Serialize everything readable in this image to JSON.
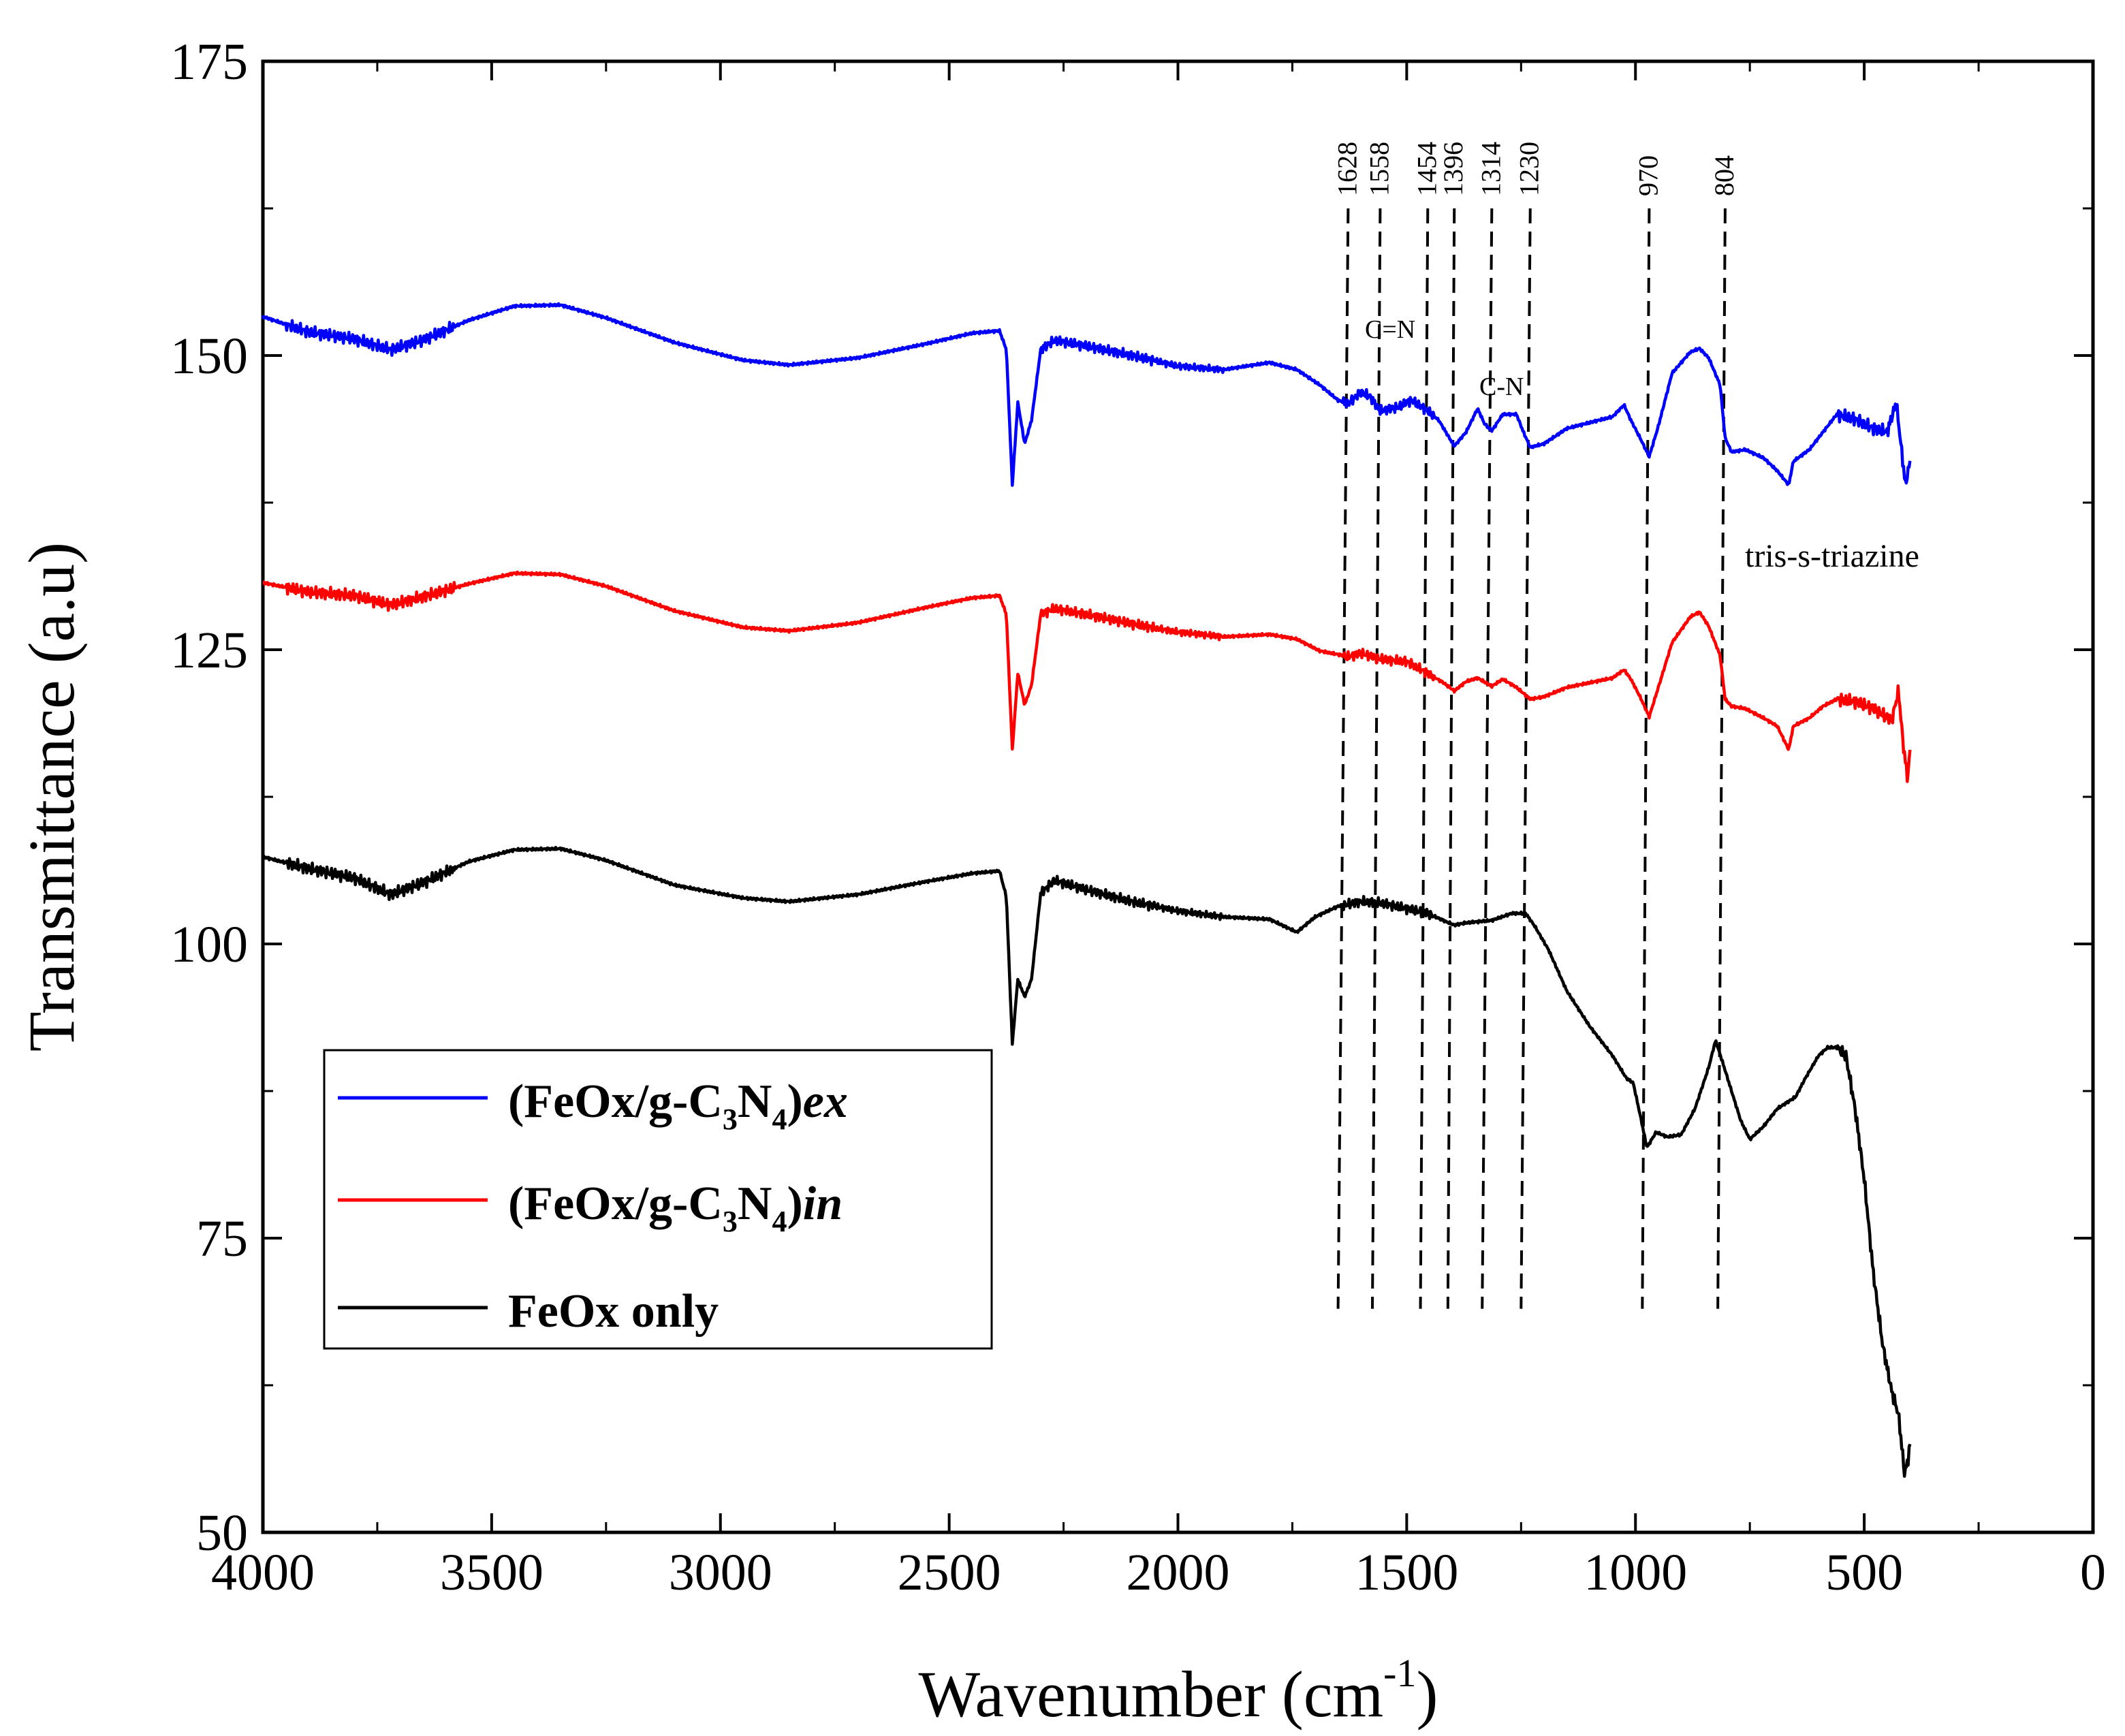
{
  "chart_data": {
    "type": "line",
    "xlabel": "Wavenumber (cm",
    "xlabel_sup": "-1",
    "xlabel_close": ")",
    "ylabel": "Transmittance (a.u)",
    "xlim": [
      4000,
      0
    ],
    "ylim": [
      50,
      175
    ],
    "x_ticks": [
      "4000",
      "3500",
      "3000",
      "2500",
      "2000",
      "1500",
      "1000",
      "500",
      "0"
    ],
    "y_ticks": [
      "50",
      "75",
      "100",
      "125",
      "150",
      "175"
    ],
    "series": [
      {
        "name": "(FeOx/g-C3N4)ex",
        "legend_parts": [
          "(FeOx/g-C",
          "3",
          "N",
          "4",
          ")",
          "ex"
        ],
        "color": "#0000ff",
        "points": [
          [
            4000,
            153.3
          ],
          [
            3900,
            152.0
          ],
          [
            3800,
            151.4
          ],
          [
            3720,
            150.5
          ],
          [
            3650,
            151.3
          ],
          [
            3550,
            153.0
          ],
          [
            3450,
            154.2
          ],
          [
            3350,
            154.3
          ],
          [
            3250,
            153.2
          ],
          [
            3100,
            151.1
          ],
          [
            2950,
            149.6
          ],
          [
            2850,
            149.2
          ],
          [
            2700,
            149.8
          ],
          [
            2550,
            151.0
          ],
          [
            2450,
            151.9
          ],
          [
            2390,
            152.1
          ],
          [
            2375,
            150.5
          ],
          [
            2362,
            139.0
          ],
          [
            2350,
            146.0
          ],
          [
            2335,
            142.5
          ],
          [
            2320,
            144.5
          ],
          [
            2300,
            150.5
          ],
          [
            2270,
            151.3
          ],
          [
            2200,
            150.8
          ],
          [
            2100,
            150.0
          ],
          [
            2000,
            149.1
          ],
          [
            1900,
            148.8
          ],
          [
            1800,
            149.4
          ],
          [
            1740,
            148.8
          ],
          [
            1690,
            147.5
          ],
          [
            1650,
            146.2
          ],
          [
            1628,
            145.9
          ],
          [
            1600,
            146.9
          ],
          [
            1580,
            146.5
          ],
          [
            1558,
            145.3
          ],
          [
            1520,
            145.6
          ],
          [
            1490,
            146.2
          ],
          [
            1454,
            145.3
          ],
          [
            1430,
            144.5
          ],
          [
            1396,
            142.3
          ],
          [
            1370,
            143.5
          ],
          [
            1345,
            145.5
          ],
          [
            1330,
            144.2
          ],
          [
            1314,
            143.6
          ],
          [
            1290,
            145.0
          ],
          [
            1260,
            145.0
          ],
          [
            1245,
            143.5
          ],
          [
            1230,
            142.2
          ],
          [
            1200,
            142.5
          ],
          [
            1150,
            143.8
          ],
          [
            1100,
            144.3
          ],
          [
            1050,
            144.8
          ],
          [
            1025,
            145.8
          ],
          [
            1010,
            144.5
          ],
          [
            990,
            143.0
          ],
          [
            970,
            141.4
          ],
          [
            950,
            144.0
          ],
          [
            920,
            148.5
          ],
          [
            880,
            150.3
          ],
          [
            860,
            150.6
          ],
          [
            840,
            149.8
          ],
          [
            815,
            147.5
          ],
          [
            804,
            143.0
          ],
          [
            790,
            141.8
          ],
          [
            760,
            142.0
          ],
          [
            720,
            141.3
          ],
          [
            690,
            140.2
          ],
          [
            665,
            139.0
          ],
          [
            655,
            141.0
          ],
          [
            620,
            142.0
          ],
          [
            590,
            143.5
          ],
          [
            560,
            145.0
          ],
          [
            520,
            144.6
          ],
          [
            480,
            143.8
          ],
          [
            450,
            143.5
          ],
          [
            430,
            146.0
          ],
          [
            420,
            142.5
          ],
          [
            410,
            139.0
          ],
          [
            400,
            141.0
          ]
        ]
      },
      {
        "name": "(FeOx/g-C3N4)in",
        "legend_parts": [
          "(FeOx/g-C",
          "3",
          "N",
          "4",
          ")",
          "in"
        ],
        "color": "#ff0000",
        "points": [
          [
            4000,
            130.7
          ],
          [
            3900,
            129.9
          ],
          [
            3800,
            129.6
          ],
          [
            3720,
            128.8
          ],
          [
            3650,
            129.5
          ],
          [
            3550,
            130.6
          ],
          [
            3450,
            131.5
          ],
          [
            3350,
            131.4
          ],
          [
            3250,
            130.4
          ],
          [
            3100,
            128.3
          ],
          [
            2950,
            126.9
          ],
          [
            2850,
            126.6
          ],
          [
            2700,
            127.3
          ],
          [
            2550,
            128.6
          ],
          [
            2450,
            129.4
          ],
          [
            2390,
            129.6
          ],
          [
            2375,
            128.0
          ],
          [
            2362,
            116.5
          ],
          [
            2350,
            123.0
          ],
          [
            2335,
            120.3
          ],
          [
            2320,
            122.0
          ],
          [
            2300,
            128.0
          ],
          [
            2270,
            128.5
          ],
          [
            2200,
            128.0
          ],
          [
            2100,
            127.2
          ],
          [
            2000,
            126.5
          ],
          [
            1900,
            126.1
          ],
          [
            1800,
            126.3
          ],
          [
            1740,
            125.9
          ],
          [
            1690,
            124.9
          ],
          [
            1650,
            124.6
          ],
          [
            1628,
            124.4
          ],
          [
            1600,
            124.7
          ],
          [
            1558,
            124.2
          ],
          [
            1500,
            124.0
          ],
          [
            1454,
            123.0
          ],
          [
            1420,
            122.2
          ],
          [
            1396,
            121.5
          ],
          [
            1370,
            122.3
          ],
          [
            1345,
            122.6
          ],
          [
            1314,
            121.9
          ],
          [
            1290,
            122.5
          ],
          [
            1260,
            121.8
          ],
          [
            1230,
            120.8
          ],
          [
            1200,
            121.0
          ],
          [
            1150,
            121.8
          ],
          [
            1100,
            122.2
          ],
          [
            1050,
            122.6
          ],
          [
            1025,
            123.3
          ],
          [
            1010,
            122.5
          ],
          [
            990,
            121.0
          ],
          [
            970,
            119.3
          ],
          [
            950,
            121.8
          ],
          [
            920,
            125.6
          ],
          [
            880,
            127.8
          ],
          [
            860,
            128.2
          ],
          [
            840,
            127.0
          ],
          [
            815,
            124.5
          ],
          [
            804,
            120.8
          ],
          [
            790,
            120.2
          ],
          [
            760,
            120.0
          ],
          [
            720,
            119.2
          ],
          [
            690,
            118.5
          ],
          [
            665,
            116.5
          ],
          [
            655,
            118.5
          ],
          [
            620,
            119.2
          ],
          [
            590,
            120.2
          ],
          [
            560,
            120.8
          ],
          [
            520,
            120.6
          ],
          [
            480,
            120.0
          ],
          [
            440,
            119.0
          ],
          [
            425,
            121.5
          ],
          [
            415,
            117.0
          ],
          [
            405,
            114.0
          ],
          [
            400,
            116.5
          ]
        ]
      },
      {
        "name": "FeOx only",
        "legend_parts": [
          "FeOx only"
        ],
        "color": "#000000",
        "points": [
          [
            4000,
            107.4
          ],
          [
            3900,
            106.4
          ],
          [
            3800,
            105.6
          ],
          [
            3720,
            104.2
          ],
          [
            3650,
            105.2
          ],
          [
            3550,
            107.0
          ],
          [
            3450,
            108.0
          ],
          [
            3350,
            108.1
          ],
          [
            3250,
            107.1
          ],
          [
            3100,
            105.0
          ],
          [
            2950,
            103.9
          ],
          [
            2850,
            103.6
          ],
          [
            2700,
            104.2
          ],
          [
            2550,
            105.3
          ],
          [
            2450,
            106.0
          ],
          [
            2390,
            106.2
          ],
          [
            2375,
            104.0
          ],
          [
            2362,
            91.5
          ],
          [
            2350,
            97.0
          ],
          [
            2335,
            95.5
          ],
          [
            2320,
            97.0
          ],
          [
            2300,
            104.3
          ],
          [
            2270,
            105.4
          ],
          [
            2200,
            104.6
          ],
          [
            2100,
            103.6
          ],
          [
            2000,
            102.8
          ],
          [
            1900,
            102.3
          ],
          [
            1800,
            102.1
          ],
          [
            1740,
            101.0
          ],
          [
            1700,
            102.3
          ],
          [
            1650,
            103.2
          ],
          [
            1600,
            103.6
          ],
          [
            1558,
            103.5
          ],
          [
            1500,
            103.0
          ],
          [
            1454,
            102.6
          ],
          [
            1420,
            102.0
          ],
          [
            1396,
            101.6
          ],
          [
            1370,
            101.8
          ],
          [
            1314,
            102.0
          ],
          [
            1270,
            102.6
          ],
          [
            1240,
            102.6
          ],
          [
            1220,
            101.5
          ],
          [
            1190,
            99.5
          ],
          [
            1150,
            96.0
          ],
          [
            1100,
            93.0
          ],
          [
            1050,
            90.5
          ],
          [
            1020,
            88.6
          ],
          [
            1005,
            88.2
          ],
          [
            990,
            85.5
          ],
          [
            975,
            82.7
          ],
          [
            955,
            84.0
          ],
          [
            930,
            83.6
          ],
          [
            900,
            83.8
          ],
          [
            870,
            86.0
          ],
          [
            840,
            89.5
          ],
          [
            825,
            91.8
          ],
          [
            810,
            90.0
          ],
          [
            790,
            87.5
          ],
          [
            770,
            85.0
          ],
          [
            750,
            83.4
          ],
          [
            720,
            84.5
          ],
          [
            690,
            86.0
          ],
          [
            650,
            87.0
          ],
          [
            630,
            88.5
          ],
          [
            600,
            90.5
          ],
          [
            580,
            91.2
          ],
          [
            560,
            91.2
          ],
          [
            540,
            90.5
          ],
          [
            520,
            86.0
          ],
          [
            500,
            80.0
          ],
          [
            480,
            72.0
          ],
          [
            460,
            66.0
          ],
          [
            440,
            62.0
          ],
          [
            425,
            60.0
          ],
          [
            412,
            55.0
          ],
          [
            405,
            56.0
          ],
          [
            400,
            57.5
          ]
        ]
      }
    ],
    "peak_lines": [
      {
        "label": "1628",
        "x_top": 1628,
        "x_bottom": 1650
      },
      {
        "label": "1558",
        "x_top": 1558,
        "x_bottom": 1575
      },
      {
        "label": "1454",
        "x_top": 1454,
        "x_bottom": 1470
      },
      {
        "label": "1396",
        "x_top": 1396,
        "x_bottom": 1410
      },
      {
        "label": "1314",
        "x_top": 1314,
        "x_bottom": 1335
      },
      {
        "label": "1230",
        "x_top": 1230,
        "x_bottom": 1250
      },
      {
        "label": "970",
        "x_top": 970,
        "x_bottom": 985
      },
      {
        "label": "804",
        "x_top": 804,
        "x_bottom": 820
      }
    ],
    "annotations": {
      "double_bond": "C=N",
      "single_bond": "C-N",
      "triazine": "tris-s-triazine"
    },
    "legend_position": "bottom-left"
  }
}
